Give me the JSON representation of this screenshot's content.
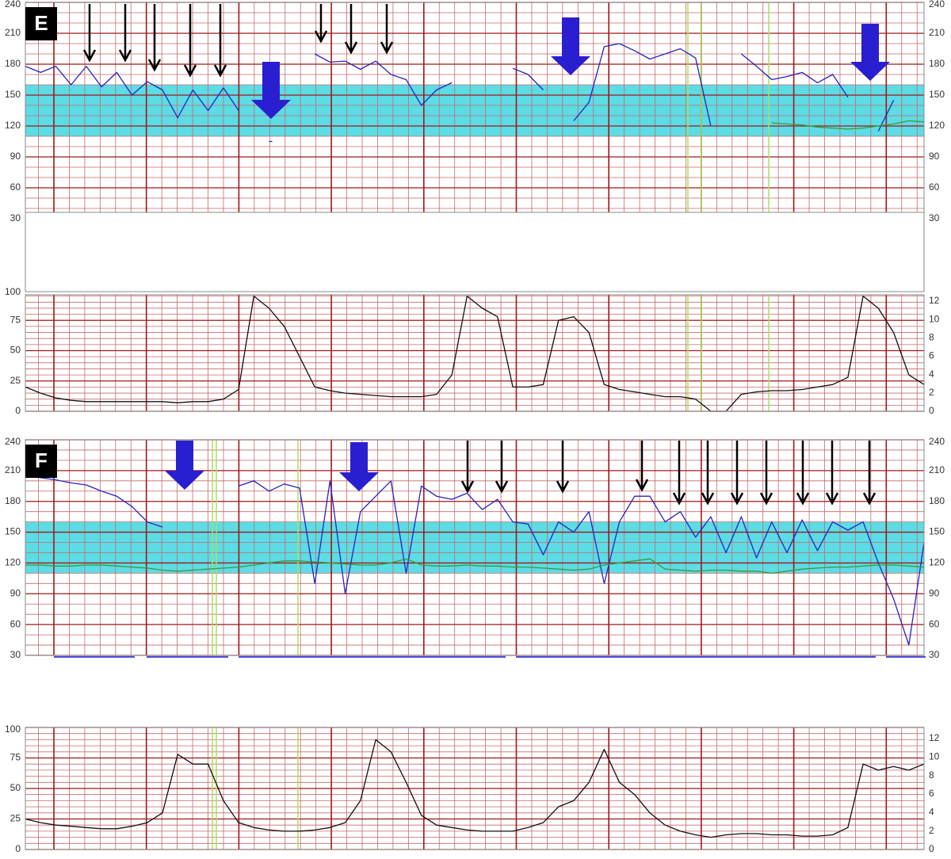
{
  "chart_data": [
    {
      "type": "line",
      "title": "E",
      "ylim": [
        30,
        240
      ],
      "yticks": [
        30,
        60,
        90,
        120,
        150,
        180,
        210,
        240
      ],
      "y2lim": [
        30,
        240
      ],
      "y2ticks": [
        30,
        60,
        90,
        120,
        150,
        180,
        210,
        240
      ],
      "grid": true,
      "normal_band": [
        110,
        160
      ],
      "series": [
        {
          "color": "#2424c8",
          "values": [
            178,
            172,
            178,
            160,
            178,
            158,
            172,
            150,
            163,
            155,
            128,
            155,
            135,
            157,
            135,
            null,
            105,
            null,
            null,
            190,
            182,
            183,
            175,
            183,
            170,
            165,
            140,
            155,
            162,
            null,
            null,
            null,
            176,
            170,
            155,
            null,
            125,
            143,
            197,
            200,
            193,
            185,
            190,
            195,
            186,
            120,
            null,
            190,
            178,
            165,
            168,
            172,
            162,
            170,
            148,
            null,
            115,
            145,
            null,
            null
          ]
        },
        {
          "color": "#3a9a3a",
          "values": [
            null,
            null,
            null,
            null,
            null,
            null,
            null,
            null,
            null,
            null,
            null,
            null,
            null,
            null,
            null,
            null,
            null,
            null,
            null,
            null,
            null,
            null,
            null,
            null,
            null,
            null,
            null,
            null,
            null,
            null,
            null,
            null,
            null,
            null,
            null,
            null,
            null,
            null,
            null,
            null,
            null,
            null,
            null,
            null,
            null,
            null,
            null,
            null,
            null,
            123,
            122,
            121,
            119,
            118,
            117,
            118,
            120,
            122,
            125,
            124
          ]
        }
      ]
    },
    {
      "type": "line",
      "ylim": [
        0,
        100
      ],
      "yticks": [
        0,
        25,
        50,
        75,
        100
      ],
      "y2lim": [
        0,
        13.2
      ],
      "y2ticks": [
        0,
        2,
        4,
        6,
        8,
        10,
        12
      ],
      "grid": true,
      "series": [
        {
          "color": "#111111",
          "values": [
            20,
            15,
            11,
            9,
            8,
            8,
            8,
            8,
            8,
            8,
            7,
            8,
            8,
            10,
            18,
            95,
            85,
            70,
            45,
            20,
            17,
            15,
            14,
            13,
            12,
            12,
            12,
            14,
            30,
            95,
            85,
            78,
            20,
            20,
            22,
            75,
            78,
            65,
            22,
            18,
            16,
            14,
            12,
            12,
            10,
            0,
            0,
            14,
            16,
            17,
            17,
            18,
            20,
            22,
            28,
            95,
            85,
            65,
            30,
            22
          ]
        }
      ]
    },
    {
      "type": "line",
      "title": "F",
      "ylim": [
        30,
        240
      ],
      "yticks": [
        30,
        60,
        90,
        120,
        150,
        180,
        210,
        240
      ],
      "y2lim": [
        30,
        240
      ],
      "y2ticks": [
        30,
        60,
        90,
        120,
        150,
        180,
        210,
        240
      ],
      "grid": true,
      "normal_band": [
        110,
        160
      ],
      "series": [
        {
          "color": "#2424c8",
          "values": [
            205,
            203,
            201,
            198,
            196,
            190,
            185,
            175,
            160,
            155,
            null,
            null,
            null,
            null,
            195,
            200,
            190,
            197,
            193,
            100,
            200,
            90,
            170,
            185,
            200,
            110,
            195,
            185,
            182,
            188,
            172,
            182,
            160,
            158,
            128,
            160,
            150,
            170,
            100,
            160,
            185,
            185,
            160,
            170,
            145,
            165,
            130,
            165,
            125,
            160,
            130,
            162,
            132,
            160,
            152,
            160,
            120,
            85,
            40,
            140
          ]
        },
        {
          "color": "#3a9a3a",
          "values": [
            118,
            118,
            117,
            117,
            118,
            118,
            117,
            116,
            115,
            113,
            112,
            113,
            114,
            115,
            116,
            118,
            120,
            122,
            122,
            121,
            120,
            119,
            118,
            118,
            120,
            124,
            118,
            117,
            117,
            118,
            117,
            117,
            116,
            116,
            115,
            114,
            113,
            114,
            118,
            120,
            122,
            124,
            114,
            113,
            112,
            113,
            113,
            112,
            112,
            110,
            112,
            114,
            115,
            116,
            116,
            117,
            118,
            118,
            117,
            116
          ]
        }
      ]
    },
    {
      "type": "line",
      "ylim": [
        0,
        100
      ],
      "yticks": [
        0,
        25,
        50,
        75,
        100
      ],
      "y2lim": [
        0,
        13.2
      ],
      "y2ticks": [
        0,
        2,
        4,
        6,
        8,
        10,
        12
      ],
      "grid": true,
      "series": [
        {
          "color": "#111111",
          "values": [
            25,
            22,
            20,
            19,
            18,
            17,
            17,
            19,
            22,
            30,
            78,
            70,
            70,
            40,
            22,
            18,
            16,
            15,
            15,
            16,
            18,
            22,
            40,
            90,
            80,
            55,
            28,
            20,
            18,
            16,
            15,
            15,
            15,
            18,
            22,
            35,
            40,
            55,
            82,
            55,
            45,
            30,
            20,
            15,
            12,
            10,
            12,
            13,
            13,
            12,
            12,
            11,
            11,
            12,
            18,
            70,
            65,
            68,
            65,
            70
          ]
        }
      ]
    }
  ]
}
